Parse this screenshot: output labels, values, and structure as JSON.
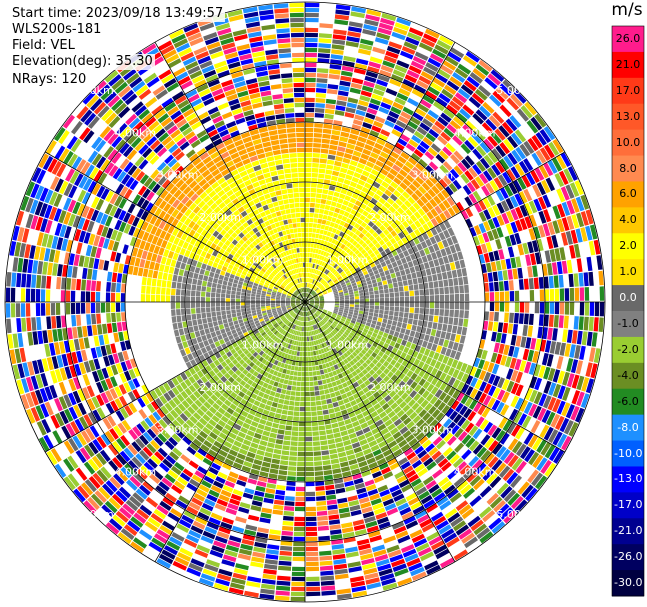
{
  "header": {
    "start_time": "Start time: 2023/09/18 13:49:57",
    "instrument": "WLS200s-181",
    "field": "Field: VEL",
    "elevation": "Elevation(deg): 35.30",
    "nrays": "NRays: 120"
  },
  "colorbar": {
    "unit": "m/s",
    "ticks": [
      "26.0",
      "21.0",
      "17.0",
      "13.0",
      "10.0",
      "8.0",
      "6.0",
      "4.0",
      "2.0",
      "1.0",
      "0.0",
      "-1.0",
      "-2.0",
      "-4.0",
      "-6.0",
      "-8.0",
      "-10.0",
      "-13.0",
      "-17.0",
      "-21.0",
      "-26.0",
      "-30.0"
    ],
    "colors": [
      "#ff1c8c",
      "#ff0000",
      "#ff3a18",
      "#ff5828",
      "#ff6e3a",
      "#ff8a50",
      "#ffa200",
      "#ffc800",
      "#ffff00",
      "#ffe000",
      "#696969",
      "#808080",
      "#9acd32",
      "#6b8e23",
      "#228b22",
      "#1e90ff",
      "#0060ff",
      "#0000ff",
      "#0000c8",
      "#000090",
      "#000060",
      "#000040"
    ]
  },
  "chart_data": {
    "type": "heatmap",
    "projection": "polar PPI",
    "field": "VEL",
    "units": "m/s",
    "n_rays": 120,
    "range_rings_km": [
      "1.00km",
      "2.00km",
      "3.00km",
      "4.00km",
      "5.00km"
    ],
    "vmin": -30.0,
    "vmax": 26.0,
    "regions": [
      {
        "description": "near-range inner ring",
        "azimuth_deg": [
          0,
          360
        ],
        "range_frac": [
          0.0,
          0.06
        ],
        "value": -4.0
      },
      {
        "description": "north half, mid range",
        "azimuth_deg": [
          270,
          430
        ],
        "range_frac": [
          0.05,
          0.55
        ],
        "value": 2.0
      },
      {
        "description": "east-northeast band",
        "azimuth_deg": [
          60,
          110
        ],
        "range_frac": [
          0.1,
          0.55
        ],
        "value": -1.0
      },
      {
        "description": "west band",
        "azimuth_deg": [
          230,
          290
        ],
        "range_frac": [
          0.05,
          0.45
        ],
        "value": -1.0
      },
      {
        "description": "south half, mid range",
        "azimuth_deg": [
          110,
          240
        ],
        "range_frac": [
          0.05,
          0.6
        ],
        "value": -2.0
      },
      {
        "description": "north, outer edge",
        "azimuth_deg": [
          280,
          420
        ],
        "range_frac": [
          0.5,
          0.6
        ],
        "value": 6.0
      },
      {
        "description": "south, outer edge",
        "azimuth_deg": [
          120,
          220
        ],
        "range_frac": [
          0.55,
          0.65
        ],
        "value": -4.0
      },
      {
        "description": "noise beyond valid range",
        "azimuth_deg": [
          0,
          360
        ],
        "range_frac": [
          0.6,
          1.0
        ],
        "value": null
      }
    ]
  }
}
